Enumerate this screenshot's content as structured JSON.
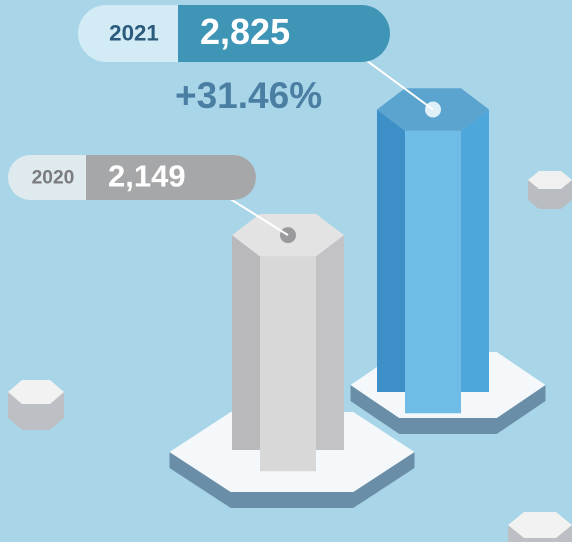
{
  "chart_data": {
    "type": "pillar",
    "categories": [
      "2020",
      "2021"
    ],
    "values": [
      2149,
      2825
    ],
    "value_labels": [
      "2,149",
      "2,825"
    ],
    "colors": [
      "#c9c9ca",
      "#4aa3d6"
    ],
    "annotation": "+31.46%"
  }
}
